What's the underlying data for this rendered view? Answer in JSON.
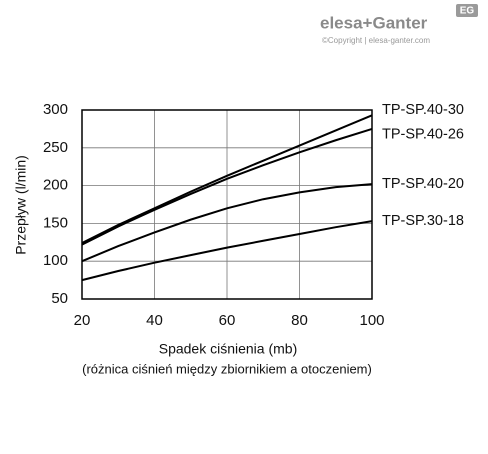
{
  "logo": {
    "text": "elesa+Ganter",
    "badge": "EG",
    "copyright": "©Copyright | elesa-ganter.com"
  },
  "chart_data": {
    "type": "line",
    "xlabel": "Spadek ciśnienia (mb)",
    "note": "(różnica ciśnień między zbiornikiem a otoczeniem)",
    "ylabel": "Przepływ (l/min)",
    "x": [
      20,
      30,
      40,
      50,
      60,
      70,
      80,
      90,
      100
    ],
    "series": [
      {
        "name": "TP-SP.40-30",
        "color": "#000000",
        "values": [
          124,
          148,
          170,
          192,
          213,
          233,
          253,
          273,
          293
        ]
      },
      {
        "name": "TP-SP.40-26",
        "color": "#000000",
        "values": [
          122,
          146,
          168,
          189,
          209,
          227,
          244,
          260,
          275
        ]
      },
      {
        "name": "TP-SP.40-20",
        "color": "#000000",
        "values": [
          100,
          120,
          138,
          155,
          170,
          182,
          191,
          198,
          202
        ]
      },
      {
        "name": "TP-SP.30-18",
        "color": "#000000",
        "values": [
          75,
          87,
          98,
          108,
          118,
          127,
          136,
          145,
          153
        ]
      }
    ],
    "xlim": [
      20,
      100
    ],
    "xticks": [
      20,
      40,
      60,
      80,
      100
    ],
    "ylim": [
      50,
      300
    ],
    "yticks": [
      50,
      100,
      150,
      200,
      250,
      300
    ],
    "grid": true
  }
}
